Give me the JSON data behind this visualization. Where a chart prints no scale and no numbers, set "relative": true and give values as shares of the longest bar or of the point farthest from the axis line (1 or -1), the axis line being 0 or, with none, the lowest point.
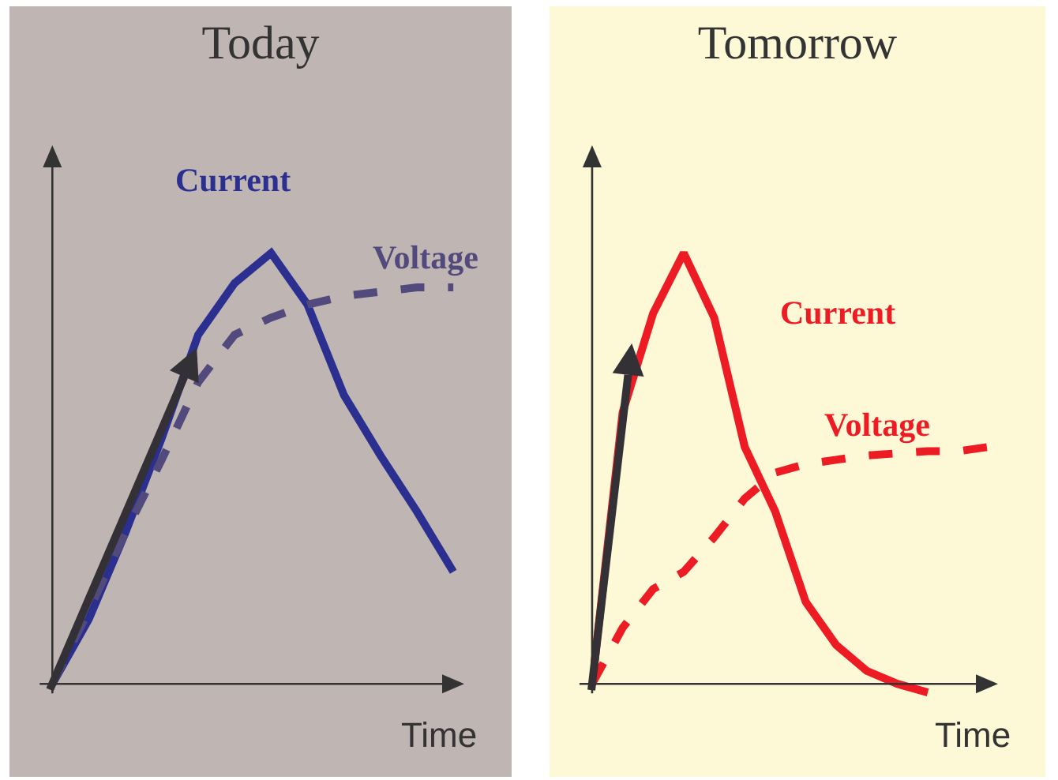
{
  "chart_data": [
    {
      "type": "line",
      "title": "Today",
      "xlabel": "Time",
      "relative": true,
      "legend": false,
      "categories": [
        null,
        null,
        null,
        null,
        null,
        null,
        null,
        null,
        null,
        null,
        null,
        null
      ],
      "series": [
        {
          "name": "Current",
          "color": "#2b2f8f",
          "line_style": "solid",
          "values": [
            0,
            0.15,
            0.35,
            0.57,
            0.81,
            0.93,
            1.0,
            0.88,
            0.67,
            0.53,
            0.4,
            0.26
          ]
        },
        {
          "name": "Voltage",
          "color": "#524a7c",
          "line_style": "dashed",
          "values": [
            0,
            0.17,
            0.35,
            0.52,
            0.7,
            0.81,
            0.85,
            0.88,
            0.9,
            0.91,
            0.92,
            0.92
          ]
        }
      ]
    },
    {
      "type": "line",
      "title": "Tomorrow",
      "xlabel": "Time",
      "relative": true,
      "legend": false,
      "categories": [
        null,
        null,
        null,
        null,
        null,
        null,
        null,
        null,
        null,
        null,
        null,
        null,
        null,
        null
      ],
      "series": [
        {
          "name": "Current",
          "color": "#ed1c24",
          "line_style": "solid",
          "values": [
            0,
            0.63,
            0.86,
            1.0,
            0.85,
            0.55,
            0.4,
            0.19,
            0.09,
            0.03,
            0,
            -0.02,
            null,
            null
          ]
        },
        {
          "name": "Voltage",
          "color": "#ed1c24",
          "line_style": "dashed",
          "values": [
            0,
            0.13,
            0.22,
            0.26,
            0.34,
            0.43,
            0.49,
            0.51,
            0.52,
            0.53,
            0.535,
            0.54,
            0.54,
            0.55
          ]
        }
      ]
    }
  ]
}
